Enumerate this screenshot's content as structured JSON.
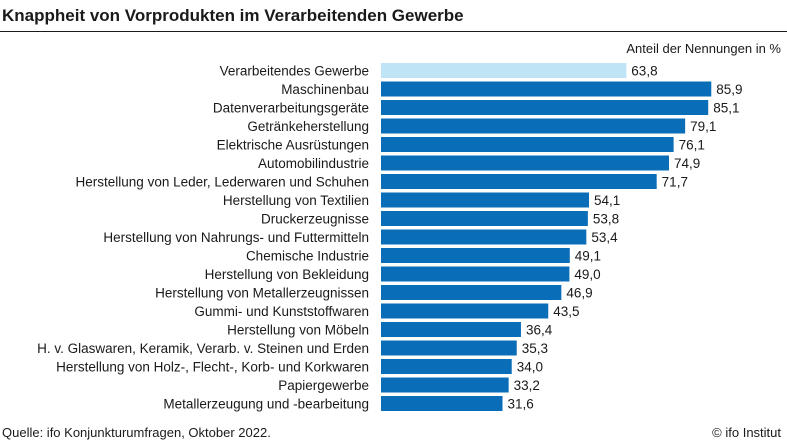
{
  "header": {
    "title": "Knappheit von Vorprodukten im Verarbeitenden Gewerbe",
    "unit_label": "Anteil der Nennungen in %"
  },
  "footer": {
    "source": "Quelle: ifo Konjunkturumfragen, Oktober 2022.",
    "copyright": "© ifo Institut"
  },
  "colors": {
    "highlight_bar": "#bfe4f6",
    "bar": "#0a6db8",
    "text": "#1a1a1a"
  },
  "chart_data": {
    "type": "bar",
    "orientation": "horizontal",
    "title": "Knappheit von Vorprodukten im Verarbeitenden Gewerbe",
    "unit": "Anteil der Nennungen in %",
    "xlim": [
      0,
      100
    ],
    "grid": false,
    "categories": [
      "Verarbeitendes Gewerbe",
      "Maschinenbau",
      "Datenverarbeitungsgeräte",
      "Getränkeherstellung",
      "Elektrische Ausrüstungen",
      "Automobilindustrie",
      "Herstellung von Leder, Lederwaren und Schuhen",
      "Herstellung von Textilien",
      "Druckerzeugnisse",
      "Herstellung von Nahrungs- und Futtermitteln",
      "Chemische Industrie",
      "Herstellung von Bekleidung",
      "Herstellung von Metallerzeugnissen",
      "Gummi- und Kunststoffwaren",
      "Herstellung von Möbeln",
      "H. v. Glaswaren, Keramik, Verarb. v. Steinen und Erden",
      "Herstellung von Holz-, Flecht-, Korb- und Korkwaren",
      "Papiergewerbe",
      "Metallerzeugung und -bearbeitung"
    ],
    "values": [
      63.8,
      85.9,
      85.1,
      79.1,
      76.1,
      74.9,
      71.7,
      54.1,
      53.8,
      53.4,
      49.1,
      49.0,
      46.9,
      43.5,
      36.4,
      35.3,
      34.0,
      33.2,
      31.6
    ],
    "value_labels": [
      "63,8",
      "85,9",
      "85,1",
      "79,1",
      "76,1",
      "74,9",
      "71,7",
      "54,1",
      "53,8",
      "53,4",
      "49,1",
      "49,0",
      "46,9",
      "43,5",
      "36,4",
      "35,3",
      "34,0",
      "33,2",
      "31,6"
    ],
    "highlighted_index": 0
  }
}
